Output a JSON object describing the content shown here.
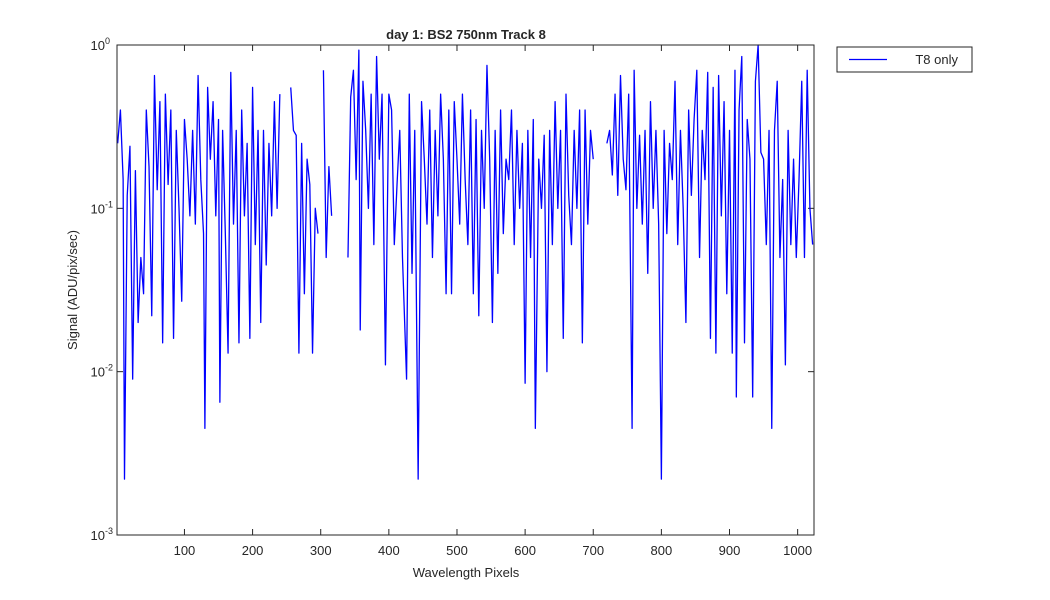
{
  "chart_data": {
    "type": "line",
    "title": "day 1: BS2  750nm  Track 8",
    "xlabel": "Wavelength Pixels",
    "ylabel": "Signal (ADU/pix/sec)",
    "xlim": [
      1,
      1024
    ],
    "ylim": [
      0.001,
      1
    ],
    "log_y": true,
    "xticks": [
      100,
      200,
      300,
      400,
      500,
      600,
      700,
      800,
      900,
      1000
    ],
    "yticks": [
      {
        "value": 0.001,
        "label": "10",
        "exponent": "-3"
      },
      {
        "value": 0.01,
        "label": "10",
        "exponent": "-2"
      },
      {
        "value": 0.1,
        "label": "10",
        "exponent": "-1"
      },
      {
        "value": 1,
        "label": "10",
        "exponent": "0"
      }
    ],
    "legend": "top-right-outside",
    "x": [
      2,
      6,
      10,
      12,
      16,
      20,
      24,
      28,
      32,
      36,
      40,
      44,
      48,
      52,
      56,
      60,
      64,
      68,
      72,
      76,
      80,
      84,
      88,
      92,
      96,
      100,
      104,
      108,
      112,
      116,
      120,
      124,
      128,
      130,
      134,
      138,
      142,
      146,
      150,
      152,
      156,
      160,
      164,
      168,
      172,
      176,
      180,
      184,
      188,
      192,
      196,
      200,
      204,
      208,
      212,
      216,
      220,
      224,
      228,
      232,
      236,
      240,
      244,
      250,
      256,
      260,
      264,
      268,
      272,
      276,
      280,
      284,
      288,
      292,
      296,
      300,
      304,
      308,
      312,
      316,
      320,
      340,
      344,
      348,
      352,
      356,
      358,
      362,
      366,
      370,
      374,
      378,
      382,
      386,
      390,
      395,
      400,
      404,
      408,
      412,
      416,
      420,
      426,
      430,
      434,
      438,
      443,
      448,
      452,
      456,
      460,
      464,
      468,
      472,
      476,
      480,
      484,
      488,
      492,
      496,
      500,
      504,
      508,
      512,
      516,
      520,
      524,
      528,
      532,
      536,
      540,
      544,
      548,
      552,
      556,
      560,
      564,
      568,
      572,
      576,
      580,
      584,
      588,
      592,
      596,
      600,
      604,
      608,
      612,
      615,
      620,
      624,
      628,
      632,
      636,
      640,
      644,
      648,
      652,
      656,
      660,
      664,
      668,
      672,
      676,
      680,
      684,
      688,
      692,
      696,
      700,
      704,
      720,
      724,
      728,
      732,
      736,
      740,
      744,
      748,
      752,
      757,
      760,
      764,
      768,
      772,
      776,
      780,
      784,
      788,
      792,
      796,
      800,
      804,
      808,
      812,
      816,
      820,
      824,
      828,
      832,
      836,
      840,
      844,
      848,
      852,
      856,
      860,
      864,
      868,
      872,
      876,
      880,
      884,
      888,
      892,
      896,
      900,
      904,
      908,
      910,
      914,
      918,
      922,
      926,
      930,
      934,
      938,
      942,
      946,
      950,
      954,
      958,
      962,
      966,
      970,
      974,
      978,
      982,
      986,
      990,
      994,
      998,
      1002,
      1006,
      1010,
      1014,
      1018,
      1022
    ],
    "series": [
      {
        "name": "T8 only",
        "color": "#0000ff",
        "values": [
          0.25,
          0.4,
          0.15,
          0.0022,
          0.12,
          0.24,
          0.009,
          0.17,
          0.02,
          0.05,
          0.03,
          0.4,
          0.18,
          0.022,
          0.65,
          0.13,
          0.45,
          0.015,
          0.5,
          0.14,
          0.4,
          0.016,
          0.3,
          0.1,
          0.027,
          0.35,
          0.2,
          0.09,
          0.3,
          0.08,
          0.65,
          0.15,
          0.07,
          0.0045,
          0.55,
          0.2,
          0.45,
          0.09,
          0.35,
          0.0065,
          0.3,
          0.07,
          0.013,
          0.68,
          0.08,
          0.3,
          0.015,
          0.4,
          0.09,
          0.25,
          0.016,
          0.55,
          0.06,
          0.3,
          0.02,
          0.3,
          0.045,
          0.25,
          0.09,
          0.45,
          0.1,
          0.5,
          null,
          null,
          0.55,
          0.3,
          0.28,
          0.013,
          0.25,
          0.03,
          0.2,
          0.14,
          0.013,
          0.1,
          0.07,
          null,
          0.7,
          0.05,
          0.18,
          0.09,
          null,
          0.05,
          0.48,
          0.7,
          0.15,
          0.93,
          0.018,
          0.6,
          0.3,
          0.1,
          0.5,
          0.06,
          0.85,
          0.2,
          0.5,
          0.011,
          0.5,
          0.4,
          0.06,
          0.14,
          0.3,
          0.05,
          0.009,
          0.5,
          0.04,
          0.3,
          0.0022,
          0.45,
          0.2,
          0.08,
          0.4,
          0.05,
          0.3,
          0.09,
          0.5,
          0.2,
          0.03,
          0.4,
          0.03,
          0.45,
          0.2,
          0.08,
          0.5,
          0.15,
          0.06,
          0.4,
          0.03,
          0.35,
          0.022,
          0.3,
          0.1,
          0.75,
          0.2,
          0.02,
          0.3,
          0.04,
          0.4,
          0.07,
          0.2,
          0.15,
          0.4,
          0.06,
          0.3,
          0.1,
          0.25,
          0.0085,
          0.3,
          0.05,
          0.35,
          0.0045,
          0.2,
          0.1,
          0.28,
          0.01,
          0.3,
          0.06,
          0.45,
          0.1,
          0.3,
          0.016,
          0.5,
          0.12,
          0.06,
          0.3,
          0.1,
          0.4,
          0.015,
          0.4,
          0.08,
          0.3,
          0.2,
          null,
          0.25,
          0.3,
          0.16,
          0.5,
          0.12,
          0.65,
          0.2,
          0.13,
          0.5,
          0.0045,
          0.7,
          0.1,
          0.28,
          0.08,
          0.3,
          0.04,
          0.45,
          0.1,
          0.3,
          0.08,
          0.0022,
          0.3,
          0.07,
          0.25,
          0.15,
          0.6,
          0.06,
          0.3,
          0.1,
          0.02,
          0.4,
          0.12,
          0.35,
          0.7,
          0.05,
          0.3,
          0.15,
          0.68,
          0.016,
          0.55,
          0.013,
          0.65,
          0.09,
          0.45,
          0.03,
          0.3,
          0.013,
          0.7,
          0.007,
          0.4,
          0.85,
          0.015,
          0.35,
          0.2,
          0.007,
          0.6,
          1.0,
          0.22,
          0.2,
          0.06,
          0.3,
          0.0045,
          0.3,
          0.6,
          0.05,
          0.15,
          0.011,
          0.3,
          0.06,
          0.2,
          0.05,
          0.15,
          0.6,
          0.05,
          0.7,
          0.1,
          0.06
        ]
      }
    ]
  }
}
